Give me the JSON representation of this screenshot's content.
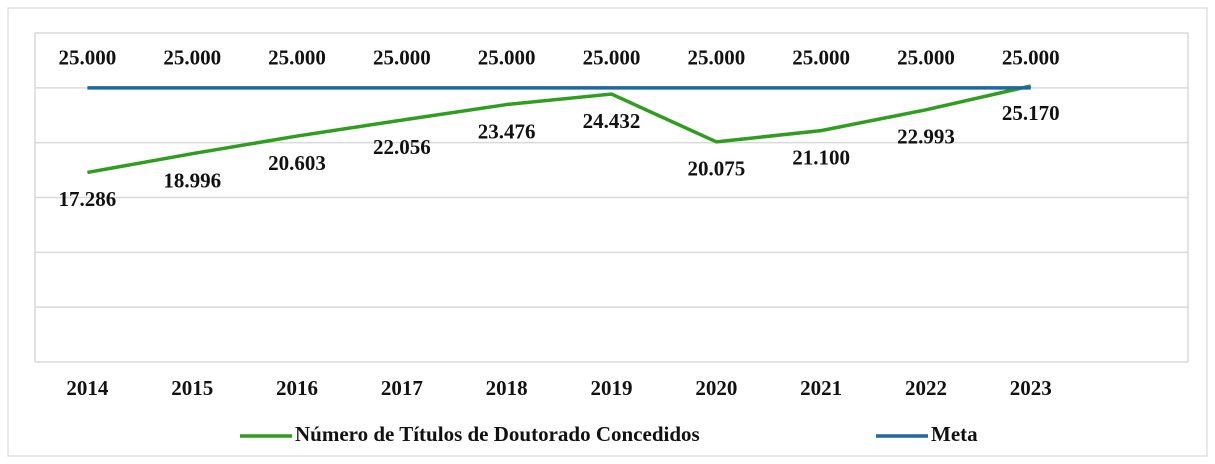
{
  "chart_data": {
    "type": "line",
    "categories": [
      "2014",
      "2015",
      "2016",
      "2017",
      "2018",
      "2019",
      "2020",
      "2021",
      "2022",
      "2023"
    ],
    "series": [
      {
        "name": "Número de Títulos de Doutorado Concedidos",
        "color": "#2f9e1f",
        "values": [
          17286,
          18996,
          20603,
          22056,
          23476,
          24432,
          20075,
          21100,
          22993,
          25170
        ],
        "value_labels": [
          "17.286",
          "18.996",
          "20.603",
          "22.056",
          "23.476",
          "24.432",
          "20.075",
          "21.100",
          "22.993",
          "25.170"
        ]
      },
      {
        "name": "Meta",
        "color": "#1f67a3",
        "values": [
          25000,
          25000,
          25000,
          25000,
          25000,
          25000,
          25000,
          25000,
          25000,
          25000
        ],
        "value_labels": [
          "25.000",
          "25.000",
          "25.000",
          "25.000",
          "25.000",
          "25.000",
          "25.000",
          "25.000",
          "25.000",
          "25.000"
        ]
      }
    ],
    "ylim": [
      0,
      30000
    ],
    "yticks": [
      0,
      5000,
      10000,
      15000,
      20000,
      25000,
      30000
    ],
    "grid": true
  }
}
